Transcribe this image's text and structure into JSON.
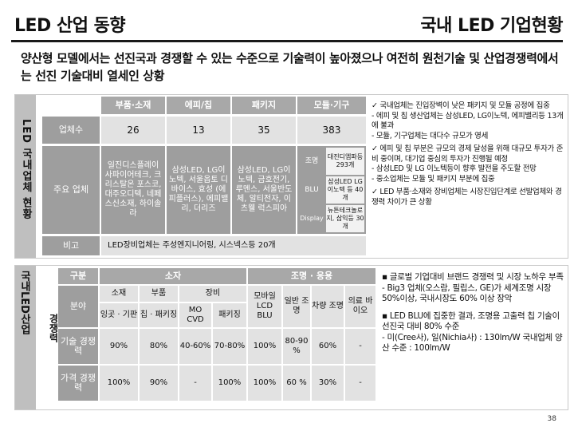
{
  "header": {
    "left_title": "LED 산업 동향",
    "right_title": "국내 LED 기업현황"
  },
  "subtitle": "양산형 모델에서는 선진국과 경쟁할 수 있는 수준으로 기술력이 높아졌으나 여전히 원천기술 및 산업경쟁력에서는 선진 기술대비 열세인 상황",
  "panel1": {
    "side_label": "LED 국내업체 현황",
    "columns": [
      "부품·소재",
      "에피/칩",
      "패키지",
      "모듈·기구"
    ],
    "row_count_label": "업체수",
    "counts": [
      "26",
      "13",
      "35",
      "383"
    ],
    "row_major_label": "주요 업체",
    "majors": [
      "일진디스플레이 사파이어테크, 크리스탈온 포스코, 대주오디텍, 네페스신소재, 하이솔라",
      "삼성LED, LG이노텍, 서울옵토 디바이스, 효성 (에피플러스), 에피밸리, 더리즈",
      "삼성LED, LG이노텍, 금호전기, 루멘스, 서울반도체, 알티전자, 이츠웰 럭스피아"
    ],
    "module_rows": [
      {
        "tag": "조명",
        "text": "대진디엠파등 293개"
      },
      {
        "tag": "BLU",
        "text": "삼성LED LG이노텍 등 40개"
      },
      {
        "tag": "Display",
        "text": "뉴튼테크놀로 지, 삼익등 30개"
      }
    ],
    "row_note_label": "비고",
    "note": "LED장비업체는 주성엔지니어링, 시스넥스등 20개",
    "bullets": [
      {
        "head": "✓ 국내업체는 진입장벽이 낮은 패키지 및 모듈 공정에 집중",
        "items": [
          "- 에피 및 칩 생산업체는 삼성LED, LG이노텍, 에피밸리등 13개에 불과",
          "- 모듈, 기구업체는 대다수 규모가 영세"
        ]
      },
      {
        "head": "✓ 에피 및 칩 부분은 규모의 경제 달성을 위해 대규모 투자가 준비 중이며, 대기업 중심의 투자가 진행될 예정",
        "items": [
          "- 삼성LED 및 LG 이노텍등이 향후 발전을 주도할 전망",
          "- 중소업체는 모듈 및 패키지 부분에 집중"
        ]
      },
      {
        "head": "✓ LED 부품·소재와 장비업체는 시장진입단계로 선발업체와 경쟁력 차이가 큰 상황",
        "items": []
      }
    ]
  },
  "panel2": {
    "side_label": "국내LED산업",
    "side_label2": "경쟁력",
    "header_category": "구분",
    "header_device": "소자",
    "header_light": "조명 · 응용",
    "sub_headers": [
      "소재",
      "부품",
      "장비"
    ],
    "row_field_label": "분야",
    "fields": [
      "잉곳 · 기판",
      "칩 · 패키징",
      "MO CVD",
      "패키징",
      "모바일 LCD BLU",
      "일반 조명",
      "차량 조명",
      "의료 바이오"
    ],
    "rows": [
      {
        "label": "기술 경쟁력",
        "values": [
          "90%",
          "80%",
          "40-60%",
          "70-80%",
          "100%",
          "80-90 %",
          "60%",
          "-"
        ]
      },
      {
        "label": "가격 경쟁력",
        "values": [
          "100%",
          "90%",
          "-",
          "100%",
          "100%",
          "60 %",
          "30%",
          "-"
        ]
      }
    ],
    "bullets": [
      {
        "head": "▪ 글로벌 기업대비 브랜드 경쟁력 및 시장 노하우 부족",
        "items": [
          "- Big3 업체(오스람, 필립스, GE)가 세계조명 시장 50%이상, 국내시장도 60% 이상 장악"
        ]
      },
      {
        "head": "▪ LED BLU에 집중한 결과, 조명용 고출력 칩 기술이 선진국 대비 80% 수준",
        "items": [
          "- 미(Cree사), 일(Nichia사) : 130lm/W 국내업체 양산 수준 : 100lm/W"
        ]
      }
    ]
  },
  "page_number": "38"
}
